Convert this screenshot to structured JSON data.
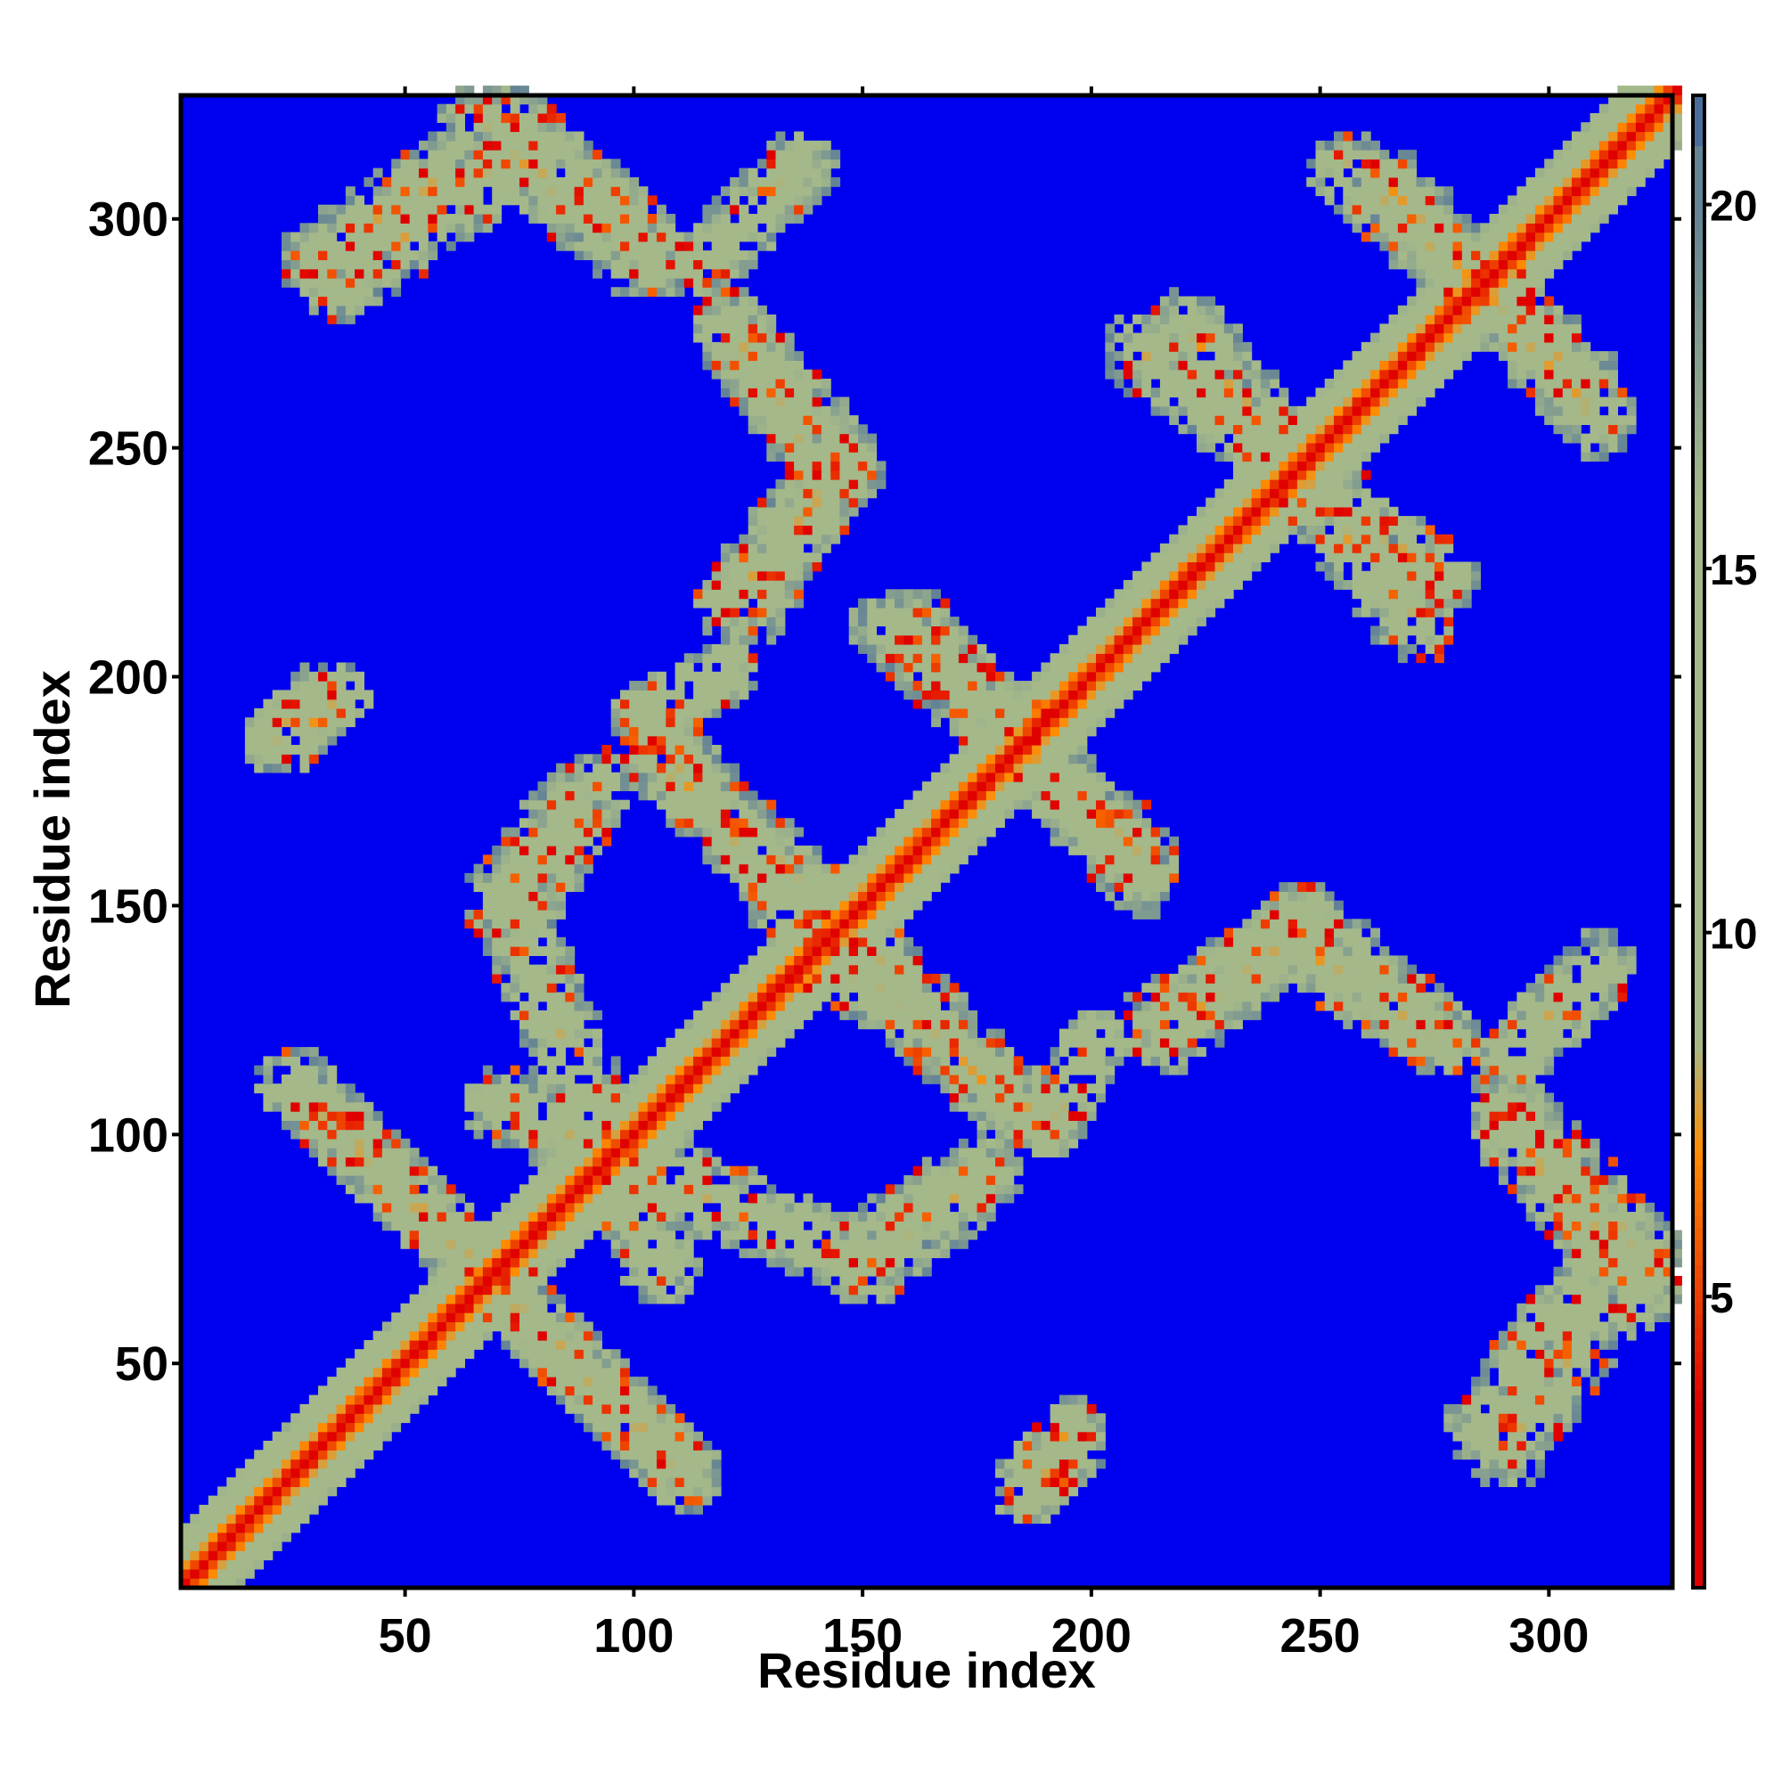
{
  "chart_data": {
    "type": "heatmap",
    "title": "",
    "xlabel": "Residue index",
    "ylabel": "Residue index",
    "xlim": [
      1,
      327
    ],
    "ylim": [
      1,
      327
    ],
    "xticks": [
      50,
      100,
      150,
      200,
      250,
      300
    ],
    "yticks": [
      50,
      100,
      150,
      200,
      250,
      300
    ],
    "colorbar": {
      "range": [
        1,
        21.5
      ],
      "ticks": [
        5,
        10,
        15,
        20
      ],
      "colors": {
        "low": "#e00000",
        "orange": "#ff8c00",
        "mid": "#a4b88a",
        "high": "#4a6e9a",
        "background": "#0000f0"
      }
    },
    "structure": {
      "diagonal": "distance near 1–4 along residue i = j, widening band up to ~12",
      "contact_bands": [
        {
          "from": [
            30,
            290
          ],
          "to": [
            60,
            310
          ],
          "kind": "parallel"
        },
        {
          "from": [
            72,
            320
          ],
          "to": [
            105,
            290
          ],
          "kind": "antiparallel"
        },
        {
          "from": [
            115,
            290
          ],
          "to": [
            135,
            310
          ],
          "kind": "parallel"
        },
        {
          "from": [
            120,
            275
          ],
          "to": [
            145,
            245
          ],
          "kind": "antiparallel"
        },
        {
          "from": [
            120,
            215
          ],
          "to": [
            145,
            245
          ],
          "kind": "parallel"
        },
        {
          "from": [
            25,
            110
          ],
          "to": [
            105,
            30
          ],
          "kind": "antiparallel"
        },
        {
          "from": [
            75,
            140
          ],
          "to": [
            105,
            70
          ],
          "kind": "antiparallel"
        },
        {
          "from": [
            75,
            150
          ],
          "to": [
            90,
            175
          ],
          "kind": "parallel"
        },
        {
          "from": [
            105,
            185
          ],
          "to": [
            140,
            140
          ],
          "kind": "antiparallel"
        },
        {
          "from": [
            150,
            140
          ],
          "to": [
            180,
            105
          ],
          "kind": "antiparallel"
        },
        {
          "from": [
            155,
            210
          ],
          "to": [
            210,
            160
          ],
          "kind": "antiparallel"
        },
        {
          "from": [
            210,
            270
          ],
          "to": [
            275,
            220
          ],
          "kind": "antiparallel"
        },
        {
          "from": [
            255,
            310
          ],
          "to": [
            305,
            265
          ],
          "kind": "antiparallel"
        },
        {
          "from": [
            215,
            125
          ],
          "to": [
            240,
            140
          ],
          "kind": "parallel"
        },
        {
          "from": [
            245,
            140
          ],
          "to": [
            275,
            120
          ],
          "kind": "antiparallel"
        },
        {
          "from": [
            285,
            35
          ],
          "to": [
            310,
            70
          ],
          "kind": "parallel"
        },
        {
          "from": [
            290,
            100
          ],
          "to": [
            320,
            65
          ],
          "kind": "antiparallel"
        },
        {
          "from": [
            150,
            70
          ],
          "to": [
            170,
            85
          ],
          "kind": "parallel"
        },
        {
          "from": [
            185,
            25
          ],
          "to": [
            195,
            35
          ],
          "kind": "patch"
        },
        {
          "from": [
            20,
            185
          ],
          "to": [
            30,
            195
          ],
          "kind": "patch"
        },
        {
          "from": [
            190,
            100
          ],
          "to": [
            200,
            120
          ],
          "kind": "patch"
        }
      ]
    }
  }
}
